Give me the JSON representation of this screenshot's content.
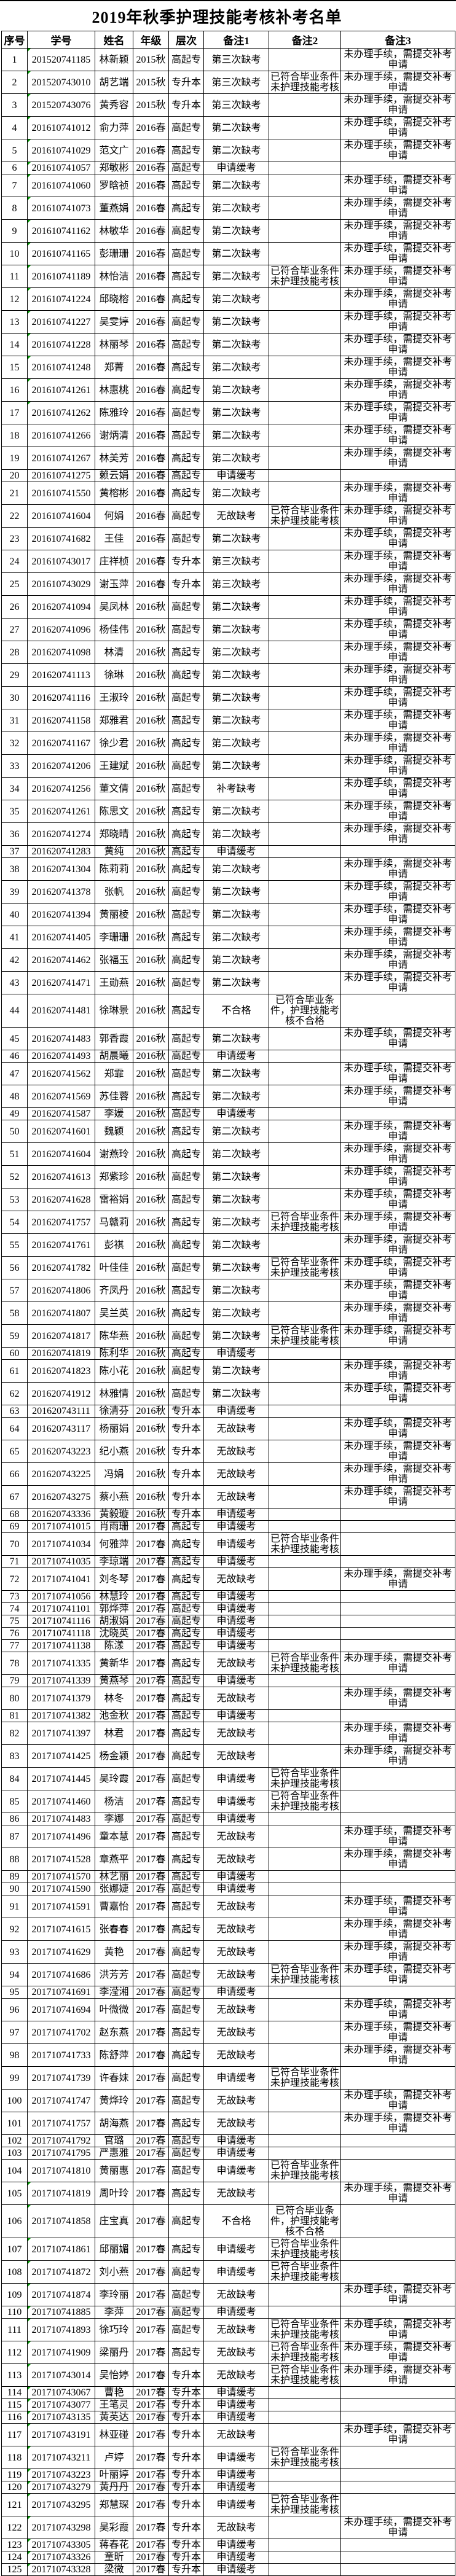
{
  "title": "2019年秋季护理技能考核补考名单",
  "colors": {
    "marker_green": "#009900",
    "border": "#000000",
    "background": "#ffffff"
  },
  "remarks_legend": {
    "note2_graduate": "已符合毕业条件未护理技能考核",
    "note2_fail": "已符合毕业条件，护理技能考核不合格",
    "note3_procedure": "未办理手续，需提交补考申请"
  },
  "table": {
    "columns": [
      "序号",
      "学号",
      "姓名",
      "年级",
      "层次",
      "备注1",
      "备注2",
      "备注3"
    ],
    "marker_rows": [
      1,
      2,
      3,
      4,
      5,
      6,
      7,
      8,
      9,
      10,
      11,
      12,
      13,
      14,
      15,
      16,
      17,
      105,
      106,
      107,
      108,
      109,
      110,
      111,
      112,
      113,
      114,
      115,
      116,
      117,
      118,
      119,
      120,
      121,
      122,
      123,
      124,
      125
    ],
    "rows": [
      [
        1,
        "201520741185",
        "林新颖",
        "2015秋",
        "高起专",
        "第三次缺考",
        "",
        "未办理手续，需提交补考申请"
      ],
      [
        2,
        "201520743010",
        "胡艺端",
        "2015秋",
        "专升本",
        "第三次缺考",
        "已符合毕业条件未护理技能考核",
        "未办理手续，需提交补考申请"
      ],
      [
        3,
        "201520743076",
        "黄秀容",
        "2015秋",
        "专升本",
        "第三次缺考",
        "",
        "未办理手续，需提交补考申请"
      ],
      [
        4,
        "201610741012",
        "俞力萍",
        "2016春",
        "高起专",
        "第二次缺考",
        "",
        "未办理手续，需提交补考申请"
      ],
      [
        5,
        "201610741029",
        "范文广",
        "2016春",
        "高起专",
        "第二次缺考",
        "",
        "未办理手续，需提交补考申请"
      ],
      [
        6,
        "201610741057",
        "郑敏彬",
        "2016春",
        "高起专",
        "申请缓考",
        "",
        ""
      ],
      [
        7,
        "201610741060",
        "罗晗祯",
        "2016春",
        "高起专",
        "第二次缺考",
        "",
        "未办理手续，需提交补考申请"
      ],
      [
        8,
        "201610741073",
        "董燕娟",
        "2016春",
        "高起专",
        "第二次缺考",
        "",
        "未办理手续，需提交补考申请"
      ],
      [
        9,
        "201610741162",
        "林敏华",
        "2016春",
        "高起专",
        "第二次缺考",
        "",
        "未办理手续，需提交补考申请"
      ],
      [
        10,
        "201610741165",
        "彭珊珊",
        "2016春",
        "高起专",
        "第二次缺考",
        "",
        "未办理手续，需提交补考申请"
      ],
      [
        11,
        "201610741189",
        "林怡洁",
        "2016春",
        "高起专",
        "第二次缺考",
        "已符合毕业条件未护理技能考核",
        "未办理手续，需提交补考申请"
      ],
      [
        12,
        "201610741224",
        "邱晓榕",
        "2016春",
        "高起专",
        "第二次缺考",
        "",
        "未办理手续，需提交补考申请"
      ],
      [
        13,
        "201610741227",
        "吴雯婷",
        "2016春",
        "高起专",
        "第二次缺考",
        "",
        "未办理手续，需提交补考申请"
      ],
      [
        14,
        "201610741228",
        "林丽琴",
        "2016春",
        "高起专",
        "第二次缺考",
        "",
        "未办理手续，需提交补考申请"
      ],
      [
        15,
        "201610741248",
        "郑菁",
        "2016春",
        "高起专",
        "第二次缺考",
        "",
        "未办理手续，需提交补考申请"
      ],
      [
        16,
        "201610741261",
        "林惠桃",
        "2016春",
        "高起专",
        "第二次缺考",
        "",
        "未办理手续，需提交补考申请"
      ],
      [
        17,
        "201610741262",
        "陈雅玲",
        "2016春",
        "高起专",
        "第二次缺考",
        "",
        "未办理手续，需提交补考申请"
      ],
      [
        18,
        "201610741266",
        "谢炳清",
        "2016春",
        "高起专",
        "第二次缺考",
        "",
        "未办理手续，需提交补考申请"
      ],
      [
        19,
        "201610741267",
        "林美芳",
        "2016春",
        "高起专",
        "第二次缺考",
        "",
        "未办理手续，需提交补考申请"
      ],
      [
        20,
        "201610741275",
        "赖云娟",
        "2016春",
        "高起专",
        "申请缓考",
        "",
        ""
      ],
      [
        21,
        "201610741550",
        "黄榕彬",
        "2016春",
        "高起专",
        "第二次缺考",
        "",
        "未办理手续，需提交补考申请"
      ],
      [
        22,
        "201610741604",
        "何娟",
        "2016春",
        "高起专",
        "无故缺考",
        "已符合毕业条件未护理技能考核",
        "未办理手续，需提交补考申请"
      ],
      [
        23,
        "201610741682",
        "王佳",
        "2016春",
        "高起专",
        "第二次缺考",
        "",
        "未办理手续，需提交补考申请"
      ],
      [
        24,
        "201610743017",
        "庄祥桢",
        "2016春",
        "专升本",
        "第三次缺考",
        "",
        "未办理手续，需提交补考申请"
      ],
      [
        25,
        "201610743029",
        "谢玉萍",
        "2016春",
        "专升本",
        "第三次缺考",
        "",
        "未办理手续，需提交补考申请"
      ],
      [
        26,
        "201620741094",
        "吴凤林",
        "2016秋",
        "高起专",
        "第二次缺考",
        "",
        "未办理手续，需提交补考申请"
      ],
      [
        27,
        "201620741096",
        "杨佳伟",
        "2016秋",
        "高起专",
        "第二次缺考",
        "",
        "未办理手续，需提交补考申请"
      ],
      [
        28,
        "201620741098",
        "林清",
        "2016秋",
        "高起专",
        "第二次缺考",
        "",
        "未办理手续，需提交补考申请"
      ],
      [
        29,
        "201620741113",
        "徐琳",
        "2016秋",
        "高起专",
        "第二次缺考",
        "",
        "未办理手续，需提交补考申请"
      ],
      [
        30,
        "201620741116",
        "王淑玲",
        "2016秋",
        "高起专",
        "第二次缺考",
        "",
        "未办理手续，需提交补考申请"
      ],
      [
        31,
        "201620741158",
        "郑雅君",
        "2016秋",
        "高起专",
        "第二次缺考",
        "",
        "未办理手续，需提交补考申请"
      ],
      [
        32,
        "201620741167",
        "徐少君",
        "2016秋",
        "高起专",
        "第二次缺考",
        "",
        "未办理手续，需提交补考申请"
      ],
      [
        33,
        "201620741206",
        "王建斌",
        "2016秋",
        "高起专",
        "第二次缺考",
        "",
        "未办理手续，需提交补考申请"
      ],
      [
        34,
        "201620741256",
        "董文倩",
        "2016秋",
        "高起专",
        "补考缺考",
        "",
        "未办理手续，需提交补考申请"
      ],
      [
        35,
        "201620741261",
        "陈思文",
        "2016秋",
        "高起专",
        "第二次缺考",
        "",
        "未办理手续，需提交补考申请"
      ],
      [
        36,
        "201620741274",
        "郑晓晴",
        "2016秋",
        "高起专",
        "第二次缺考",
        "",
        "未办理手续，需提交补考申请"
      ],
      [
        37,
        "201620741283",
        "黄纯",
        "2016秋",
        "高起专",
        "申请缓考",
        "",
        ""
      ],
      [
        38,
        "201620741304",
        "陈莉莉",
        "2016秋",
        "高起专",
        "第二次缺考",
        "",
        "未办理手续，需提交补考申请"
      ],
      [
        39,
        "201620741378",
        "张帆",
        "2016秋",
        "高起专",
        "第二次缺考",
        "",
        "未办理手续，需提交补考申请"
      ],
      [
        40,
        "201620741394",
        "黄丽棱",
        "2016秋",
        "高起专",
        "第二次缺考",
        "",
        "未办理手续，需提交补考申请"
      ],
      [
        41,
        "201620741405",
        "李珊珊",
        "2016秋",
        "高起专",
        "第二次缺考",
        "",
        "未办理手续，需提交补考申请"
      ],
      [
        42,
        "201620741462",
        "张福玉",
        "2016秋",
        "高起专",
        "第二次缺考",
        "",
        "未办理手续，需提交补考申请"
      ],
      [
        43,
        "201620741471",
        "王勋燕",
        "2016秋",
        "高起专",
        "第二次缺考",
        "",
        "未办理手续，需提交补考申请"
      ],
      [
        44,
        "201620741481",
        "徐琳景",
        "2016秋",
        "高起专",
        "不合格",
        "已符合毕业条件，护理技能考核不合格",
        ""
      ],
      [
        45,
        "201620741483",
        "郭香霞",
        "2016秋",
        "高起专",
        "第二次缺考",
        "",
        "未办理手续，需提交补考申请"
      ],
      [
        46,
        "201620741493",
        "胡晨曦",
        "2016秋",
        "高起专",
        "申请缓考",
        "",
        ""
      ],
      [
        47,
        "201620741562",
        "郑霏",
        "2016秋",
        "高起专",
        "第二次缺考",
        "",
        "未办理手续，需提交补考申请"
      ],
      [
        48,
        "201620741569",
        "苏佳蓉",
        "2016秋",
        "高起专",
        "第二次缺考",
        "",
        "未办理手续，需提交补考申请"
      ],
      [
        49,
        "201620741587",
        "李媛",
        "2016秋",
        "高起专",
        "申请缓考",
        "",
        ""
      ],
      [
        50,
        "201620741601",
        "魏颖",
        "2016秋",
        "高起专",
        "第二次缺考",
        "",
        "未办理手续，需提交补考申请"
      ],
      [
        51,
        "201620741604",
        "谢燕玲",
        "2016秋",
        "高起专",
        "第二次缺考",
        "",
        "未办理手续，需提交补考申请"
      ],
      [
        52,
        "201620741613",
        "郑紫珍",
        "2016秋",
        "高起专",
        "第二次缺考",
        "",
        "未办理手续，需提交补考申请"
      ],
      [
        53,
        "201620741628",
        "雷裕娟",
        "2016秋",
        "高起专",
        "第二次缺考",
        "",
        "未办理手续，需提交补考申请"
      ],
      [
        54,
        "201620741757",
        "马赣莉",
        "2016秋",
        "高起专",
        "第二次缺考",
        "已符合毕业条件未护理技能考核",
        "未办理手续，需提交补考申请"
      ],
      [
        55,
        "201620741761",
        "彭祺",
        "2016秋",
        "高起专",
        "第二次缺考",
        "",
        "未办理手续，需提交补考申请"
      ],
      [
        56,
        "201620741782",
        "叶佳佳",
        "2016秋",
        "高起专",
        "第二次缺考",
        "已符合毕业条件未护理技能考核",
        "未办理手续，需提交补考申请"
      ],
      [
        57,
        "201620741806",
        "齐凤丹",
        "2016秋",
        "高起专",
        "第二次缺考",
        "",
        "未办理手续，需提交补考申请"
      ],
      [
        58,
        "201620741807",
        "吴兰英",
        "2016秋",
        "高起专",
        "第二次缺考",
        "",
        "未办理手续，需提交补考申请"
      ],
      [
        59,
        "201620741817",
        "陈华燕",
        "2016秋",
        "高起专",
        "第二次缺考",
        "已符合毕业条件未护理技能考核",
        "未办理手续，需提交补考申请"
      ],
      [
        60,
        "201620741819",
        "陈利华",
        "2016秋",
        "高起专",
        "申请缓考",
        "",
        ""
      ],
      [
        61,
        "201620741823",
        "陈小花",
        "2016秋",
        "高起专",
        "第二次缺考",
        "",
        "未办理手续，需提交补考申请"
      ],
      [
        62,
        "201620741912",
        "林雅情",
        "2016秋",
        "高起专",
        "第二次缺考",
        "",
        "未办理手续，需提交补考申请"
      ],
      [
        63,
        "201620743111",
        "徐清芬",
        "2016秋",
        "专升本",
        "申请缓考",
        "",
        ""
      ],
      [
        64,
        "201620743117",
        "杨丽娟",
        "2016秋",
        "专升本",
        "无故缺考",
        "",
        "未办理手续，需提交补考申请"
      ],
      [
        65,
        "201620743223",
        "纪小燕",
        "2016秋",
        "专升本",
        "无故缺考",
        "",
        "未办理手续，需提交补考申请"
      ],
      [
        66,
        "201620743225",
        "冯娟",
        "2016秋",
        "专升本",
        "无故缺考",
        "",
        "未办理手续，需提交补考申请"
      ],
      [
        67,
        "201620743275",
        "蔡小燕",
        "2016秋",
        "专升本",
        "无故缺考",
        "",
        "未办理手续，需提交补考申请"
      ],
      [
        68,
        "201620743336",
        "黄毅璇",
        "2016秋",
        "专升本",
        "申请缓考",
        "",
        ""
      ],
      [
        69,
        "201710741015",
        "肖雨珊",
        "2017春",
        "高起专",
        "申请缓考",
        "",
        ""
      ],
      [
        70,
        "201710741034",
        "何雅萍",
        "2017春",
        "高起专",
        "申请缓考",
        "已符合毕业条件未护理技能考核",
        ""
      ],
      [
        71,
        "201710741035",
        "李琼端",
        "2017春",
        "高起专",
        "申请缓考",
        "",
        ""
      ],
      [
        72,
        "201710741041",
        "刘冬琴",
        "2017春",
        "高起专",
        "无故缺考",
        "",
        "未办理手续，需提交补考申请"
      ],
      [
        73,
        "201710741056",
        "林慧玲",
        "2017春",
        "高起专",
        "申请缓考",
        "",
        ""
      ],
      [
        74,
        "201710741101",
        "郭烨萍",
        "2017春",
        "高起专",
        "申请缓考",
        "",
        ""
      ],
      [
        75,
        "201710741116",
        "胡淑娟",
        "2017春",
        "高起专",
        "申请缓考",
        "",
        ""
      ],
      [
        76,
        "201710741118",
        "沈晓英",
        "2017春",
        "高起专",
        "申请缓考",
        "",
        ""
      ],
      [
        77,
        "201710741138",
        "陈漾",
        "2017春",
        "高起专",
        "申请缓考",
        "",
        ""
      ],
      [
        78,
        "201710741335",
        "黄新华",
        "2017春",
        "高起专",
        "无故缺考",
        "已符合毕业条件未护理技能考核",
        "未办理手续，需提交补考申请"
      ],
      [
        79,
        "201710741339",
        "黄燕琴",
        "2017春",
        "高起专",
        "申请缓考",
        "",
        ""
      ],
      [
        80,
        "201710741379",
        "林冬",
        "2017春",
        "高起专",
        "无故缺考",
        "",
        "未办理手续，需提交补考申请"
      ],
      [
        81,
        "201710741382",
        "池金秋",
        "2017春",
        "高起专",
        "申请缓考",
        "",
        ""
      ],
      [
        82,
        "201710741397",
        "林君",
        "2017春",
        "高起专",
        "无故缺考",
        "",
        "未办理手续，需提交补考申请"
      ],
      [
        83,
        "201710741425",
        "杨金颖",
        "2017春",
        "高起专",
        "无故缺考",
        "",
        "未办理手续，需提交补考申请"
      ],
      [
        84,
        "201710741445",
        "吴玲霞",
        "2017春",
        "高起专",
        "申请缓考",
        "已符合毕业条件未护理技能考核",
        ""
      ],
      [
        85,
        "201710741460",
        "杨洁",
        "2017春",
        "高起专",
        "申请缓考",
        "已符合毕业条件未护理技能考核",
        ""
      ],
      [
        86,
        "201710741483",
        "李娜",
        "2017春",
        "高起专",
        "申请缓考",
        "",
        ""
      ],
      [
        87,
        "201710741496",
        "童本慧",
        "2017春",
        "高起专",
        "无故缺考",
        "",
        "未办理手续，需提交补考申请"
      ],
      [
        88,
        "201710741528",
        "章燕平",
        "2017春",
        "高起专",
        "无故缺考",
        "",
        "未办理手续，需提交补考申请"
      ],
      [
        89,
        "201710741570",
        "林艺丽",
        "2017春",
        "高起专",
        "申请缓考",
        "",
        ""
      ],
      [
        90,
        "201710741590",
        "张娜婕",
        "2017春",
        "高起专",
        "申请缓考",
        "",
        ""
      ],
      [
        91,
        "201710741591",
        "曹嘉怡",
        "2017春",
        "高起专",
        "无故缺考",
        "",
        "未办理手续，需提交补考申请"
      ],
      [
        92,
        "201710741615",
        "张春春",
        "2017春",
        "高起专",
        "无故缺考",
        "",
        "未办理手续，需提交补考申请"
      ],
      [
        93,
        "201710741629",
        "黄艳",
        "2017春",
        "高起专",
        "无故缺考",
        "",
        "未办理手续，需提交补考申请"
      ],
      [
        94,
        "201710741686",
        "洪芳芳",
        "2017春",
        "高起专",
        "无故缺考",
        "已符合毕业条件未护理技能考核",
        "未办理手续，需提交补考申请"
      ],
      [
        95,
        "201710741691",
        "李滢湘",
        "2017春",
        "高起专",
        "申请缓考",
        "",
        ""
      ],
      [
        96,
        "201710741694",
        "叶微微",
        "2017春",
        "高起专",
        "无故缺考",
        "",
        "未办理手续，需提交补考申请"
      ],
      [
        97,
        "201710741702",
        "赵东燕",
        "2017春",
        "高起专",
        "无故缺考",
        "",
        "未办理手续，需提交补考申请"
      ],
      [
        98,
        "201710741733",
        "陈舒萍",
        "2017春",
        "高起专",
        "无故缺考",
        "",
        "未办理手续，需提交补考申请"
      ],
      [
        99,
        "201710741739",
        "许春妹",
        "2017春",
        "高起专",
        "申请缓考",
        "已符合毕业条件未护理技能考核",
        ""
      ],
      [
        100,
        "201710741747",
        "黄烨玲",
        "2017春",
        "高起专",
        "无故缺考",
        "",
        "未办理手续，需提交补考申请"
      ],
      [
        101,
        "201710741757",
        "胡海燕",
        "2017春",
        "高起专",
        "无故缺考",
        "",
        "未办理手续，需提交补考申请"
      ],
      [
        102,
        "201710741792",
        "官璐",
        "2017春",
        "高起专",
        "申请缓考",
        "",
        ""
      ],
      [
        103,
        "201710741795",
        "严惠雅",
        "2017春",
        "高起专",
        "申请缓考",
        "",
        ""
      ],
      [
        104,
        "201710741810",
        "黄丽惠",
        "2017春",
        "高起专",
        "申请缓考",
        "已符合毕业条件未护理技能考核",
        ""
      ],
      [
        105,
        "201710741819",
        "周叶玲",
        "2017春",
        "高起专",
        "无故缺考",
        "",
        "未办理手续，需提交补考申请"
      ],
      [
        106,
        "201710741858",
        "庄宝真",
        "2017春",
        "高起专",
        "不合格",
        "已符合毕业条件，护理技能考核不合格",
        ""
      ],
      [
        107,
        "201710741861",
        "邱丽媚",
        "2017春",
        "高起专",
        "申请缓考",
        "已符合毕业条件未护理技能考核",
        ""
      ],
      [
        108,
        "201710741872",
        "刘小燕",
        "2017春",
        "高起专",
        "申请缓考",
        "已符合毕业条件未护理技能考核",
        ""
      ],
      [
        109,
        "201710741874",
        "李玲丽",
        "2017春",
        "高起专",
        "无故缺考",
        "",
        "未办理手续，需提交补考申请"
      ],
      [
        110,
        "201710741885",
        "李萍",
        "2017春",
        "高起专",
        "申请缓考",
        "",
        ""
      ],
      [
        111,
        "201710741893",
        "徐巧玲",
        "2017春",
        "高起专",
        "无故缺考",
        "已符合毕业条件未护理技能考核",
        "未办理手续，需提交补考申请"
      ],
      [
        112,
        "201710741909",
        "梁丽丹",
        "2017春",
        "高起专",
        "无故缺考",
        "已符合毕业条件未护理技能考核",
        "未办理手续，需提交补考申请"
      ],
      [
        113,
        "201710743014",
        "吴怡婷",
        "2017春",
        "专升本",
        "无故缺考",
        "已符合毕业条件未护理技能考核",
        "未办理手续，需提交补考申请"
      ],
      [
        114,
        "201710743067",
        "曹艳",
        "2017春",
        "专升本",
        "申请缓考",
        "",
        ""
      ],
      [
        115,
        "201710743077",
        "王笔灵",
        "2017春",
        "专升本",
        "申请缓考",
        "",
        ""
      ],
      [
        116,
        "201710743135",
        "黄英达",
        "2017春",
        "专升本",
        "申请缓考",
        "",
        ""
      ],
      [
        117,
        "201710743191",
        "林亚碰",
        "2017春",
        "专升本",
        "无故缺考",
        "",
        "未办理手续，需提交补考申请"
      ],
      [
        118,
        "201710743211",
        "卢婷",
        "2017春",
        "专升本",
        "申请缓考",
        "已符合毕业条件未护理技能考核",
        ""
      ],
      [
        119,
        "201710743223",
        "叶丽婷",
        "2017春",
        "专升本",
        "申请缓考",
        "",
        ""
      ],
      [
        120,
        "201710743279",
        "黄丹丹",
        "2017春",
        "专升本",
        "申请缓考",
        "",
        ""
      ],
      [
        121,
        "201710743295",
        "郑慧琛",
        "2017春",
        "专升本",
        "申请缓考",
        "已符合毕业条件未护理技能考核",
        ""
      ],
      [
        122,
        "201710743298",
        "吴彩霞",
        "2017春",
        "专升本",
        "无故缺考",
        "",
        "未办理手续，需提交补考申请"
      ],
      [
        123,
        "201710743305",
        "蒋春花",
        "2017春",
        "专升本",
        "申请缓考",
        "",
        ""
      ],
      [
        124,
        "201710743326",
        "童昕",
        "2017春",
        "专升本",
        "申请缓考",
        "",
        ""
      ],
      [
        125,
        "201710743328",
        "梁微",
        "2017春",
        "专升本",
        "申请缓考",
        "",
        ""
      ]
    ]
  }
}
